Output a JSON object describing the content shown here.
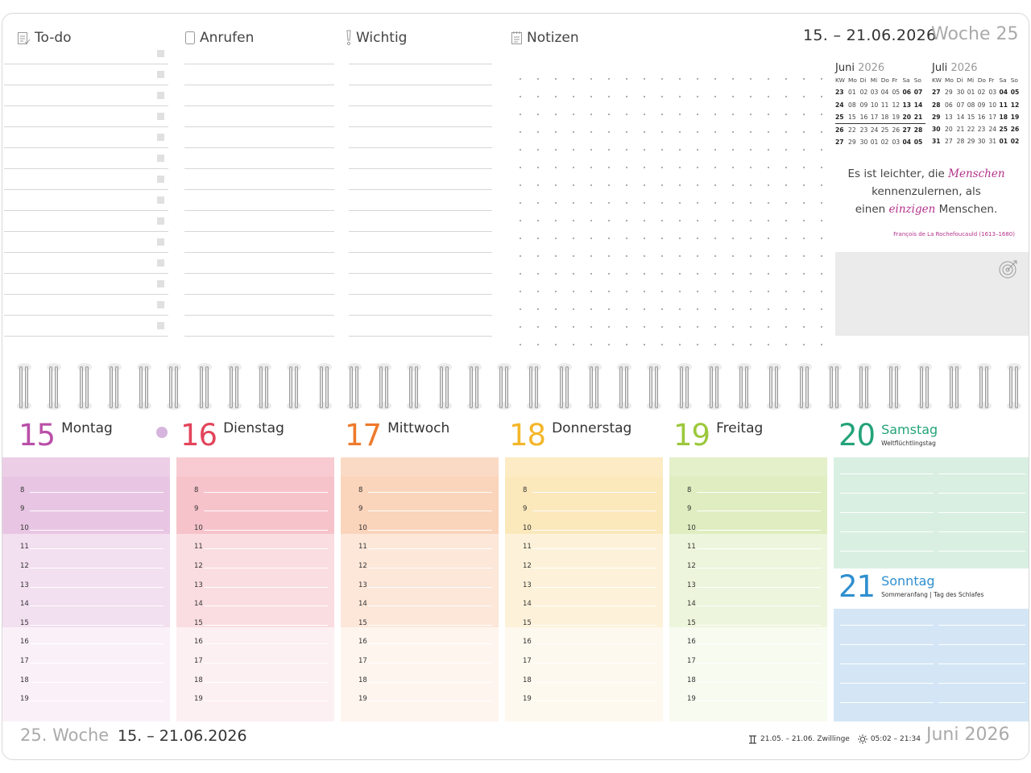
{
  "notes_sections": {
    "todo": "To-do",
    "call": "Anrufen",
    "important": "Wichtig",
    "notes": "Notizen"
  },
  "header": {
    "date_range": "15. – 21.06.2026",
    "week_label": "Woche 25"
  },
  "mini_calendars": [
    {
      "month": "Juni",
      "year": "2026",
      "weekday_header": [
        "KW",
        "Mo",
        "Di",
        "Mi",
        "Do",
        "Fr",
        "Sa",
        "So"
      ],
      "rows": [
        [
          "23",
          "01",
          "02",
          "03",
          "04",
          "05",
          "06",
          "07"
        ],
        [
          "24",
          "08",
          "09",
          "10",
          "11",
          "12",
          "13",
          "14"
        ],
        [
          "25",
          "15",
          "16",
          "17",
          "18",
          "19",
          "20",
          "21"
        ],
        [
          "26",
          "22",
          "23",
          "24",
          "25",
          "26",
          "27",
          "28"
        ],
        [
          "27",
          "29",
          "30",
          "01",
          "02",
          "03",
          "04",
          "05"
        ]
      ]
    },
    {
      "month": "Juli",
      "year": "2026",
      "weekday_header": [
        "KW",
        "Mo",
        "Di",
        "Mi",
        "Do",
        "Fr",
        "Sa",
        "So"
      ],
      "rows": [
        [
          "27",
          "29",
          "30",
          "01",
          "02",
          "03",
          "04",
          "05"
        ],
        [
          "28",
          "06",
          "07",
          "08",
          "09",
          "10",
          "11",
          "12"
        ],
        [
          "29",
          "13",
          "14",
          "15",
          "16",
          "17",
          "18",
          "19"
        ],
        [
          "30",
          "20",
          "21",
          "22",
          "23",
          "24",
          "25",
          "26"
        ],
        [
          "31",
          "27",
          "28",
          "29",
          "30",
          "31",
          "01",
          "02"
        ]
      ]
    }
  ],
  "quote": {
    "part1": "Es ist leichter, die ",
    "highlight1": "Menschen",
    "part2": "kennenzulernen, als",
    "part3": "einen ",
    "highlight2": "einzigen",
    "part4": " Menschen.",
    "author": "François de La Rochefoucauld (1613–1680)"
  },
  "hours": [
    "8",
    "9",
    "10",
    "11",
    "12",
    "13",
    "14",
    "15",
    "16",
    "17",
    "18",
    "19"
  ],
  "days": [
    {
      "number": "15",
      "name": "Montag",
      "color": "#b94fa8"
    },
    {
      "number": "16",
      "name": "Dienstag",
      "color": "#e2455b"
    },
    {
      "number": "17",
      "name": "Mittwoch",
      "color": "#ee7a2c"
    },
    {
      "number": "18",
      "name": "Donnerstag",
      "color": "#f4b62a"
    },
    {
      "number": "19",
      "name": "Freitag",
      "color": "#9cc83c"
    }
  ],
  "weekend": {
    "saturday": {
      "number": "20",
      "name": "Samstag",
      "note": "Weltflüchtlingstag",
      "color": "#23a37a"
    },
    "sunday": {
      "number": "21",
      "name": "Sonntag",
      "note": "Sommeranfang | Tag des Schlafes",
      "color": "#2f8fcf"
    }
  },
  "footer": {
    "week": "25. Woche",
    "date_range": "15. – 21.06.2026",
    "zodiac": "21.05. – 21.06. Zwillinge",
    "sun_times": "05:02 – 21:34",
    "month": "Juni 2026"
  },
  "icons": [
    "todo-icon",
    "phone-icon",
    "exclamation-icon",
    "notepad-icon",
    "target-icon",
    "new-moon-icon",
    "half-moon-icon",
    "gemini-icon",
    "sun-icon"
  ]
}
